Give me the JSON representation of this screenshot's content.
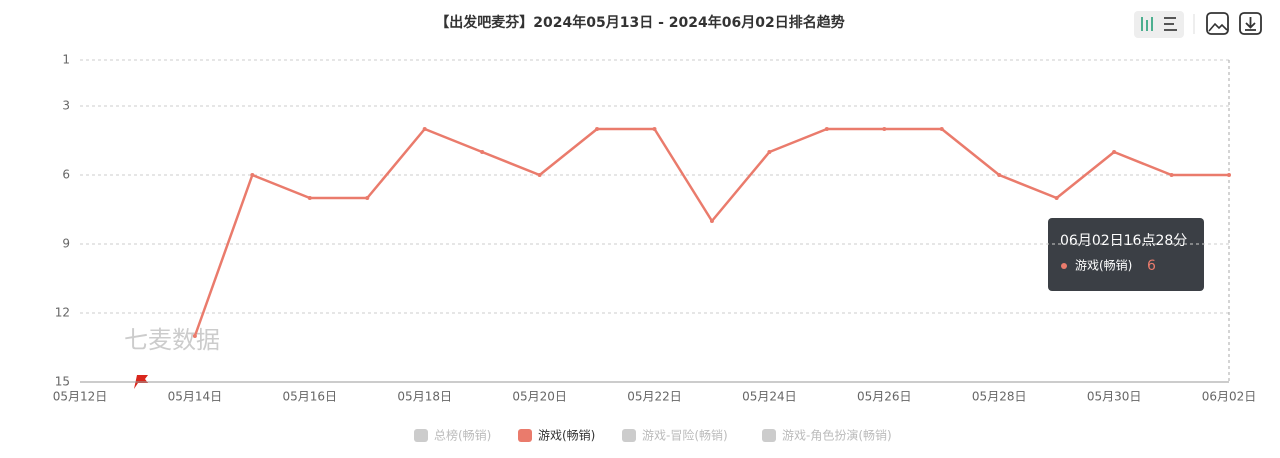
{
  "chart_data": {
    "type": "line",
    "title": "【出发吧麦芬】2024年05月13日 - 2024年06月02日排名趋势",
    "watermark": "七麦数据",
    "categories": [
      "05月12日",
      null,
      "05月14日",
      null,
      "05月16日",
      null,
      "05月18日",
      null,
      "05月20日",
      null,
      "05月22日",
      null,
      "05月24日",
      null,
      "05月26日",
      null,
      "05月28日",
      null,
      "05月30日",
      null,
      "06月02日"
    ],
    "series": [
      {
        "name": "游戏(畅销)",
        "color": "#ea7b6c",
        "values": [
          null,
          null,
          13,
          6,
          7,
          7,
          4,
          5,
          6,
          4,
          4,
          8,
          5,
          4,
          4,
          4,
          6,
          7,
          5,
          6,
          6
        ]
      }
    ],
    "legend": {
      "items": [
        "总榜(畅销)",
        "游戏(畅销)",
        "游戏-冒险(畅销)",
        "游戏-角色扮演(畅销)"
      ],
      "active": [
        false,
        true,
        false,
        false
      ],
      "inactive_color": "#cccccc"
    },
    "ylim": [
      1,
      15
    ],
    "yticks": [
      1,
      3,
      6,
      9,
      12,
      15
    ],
    "y_inverted": true,
    "grid": true,
    "tooltip": {
      "title": "06月02日16点28分",
      "index": 20
    }
  }
}
